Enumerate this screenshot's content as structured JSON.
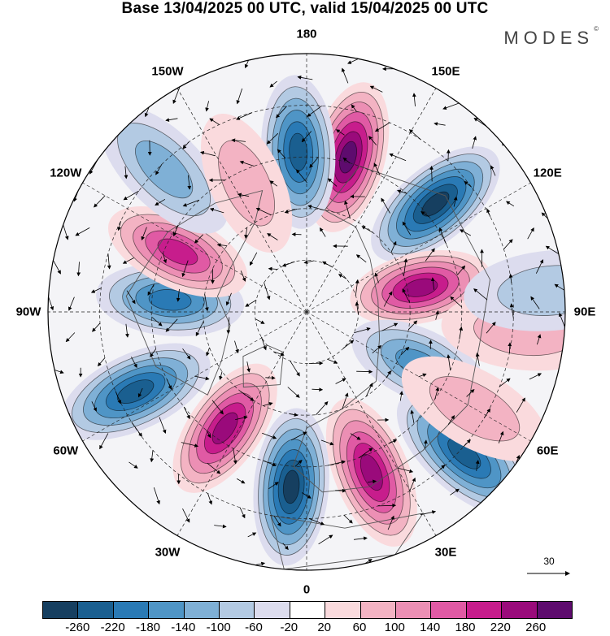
{
  "title": "Base 13/04/2025 00 UTC, valid 15/04/2025 00 UTC",
  "brand": "MODES",
  "brand_mark": "©",
  "longitude_labels": [
    {
      "text": "180",
      "lon": 180
    },
    {
      "text": "150E",
      "lon": 150
    },
    {
      "text": "120E",
      "lon": 120
    },
    {
      "text": "90E",
      "lon": 90
    },
    {
      "text": "60E",
      "lon": 60
    },
    {
      "text": "30E",
      "lon": 30
    },
    {
      "text": "0",
      "lon": 0
    },
    {
      "text": "30W",
      "lon": -30
    },
    {
      "text": "60W",
      "lon": -60
    },
    {
      "text": "90W",
      "lon": -90
    },
    {
      "text": "120W",
      "lon": -120
    },
    {
      "text": "150W",
      "lon": -150
    }
  ],
  "reference_vector": {
    "label": "30"
  },
  "colorbar": {
    "colors": [
      "#163f60",
      "#1a5f90",
      "#2a7ab5",
      "#4f95c6",
      "#7fb0d6",
      "#b3cae3",
      "#dcdcee",
      "#ffffff",
      "#fadadd",
      "#f3b3c3",
      "#ec8fb4",
      "#e05aa4",
      "#c71d8c",
      "#9a0a7b",
      "#5e0b6e"
    ],
    "ticks": [
      "-260",
      "-220",
      "-180",
      "-140",
      "-100",
      "-60",
      "-20",
      "20",
      "60",
      "100",
      "140",
      "180",
      "220",
      "260"
    ]
  },
  "anomalies": [
    {
      "name": "anomaly-positive-150e",
      "lon": 165,
      "r": 0.62,
      "value": 260
    },
    {
      "name": "anomaly-negative-180",
      "lon": 183,
      "r": 0.62,
      "value": -240
    },
    {
      "name": "anomaly-negative-130e",
      "lon": 130,
      "r": 0.65,
      "value": -260
    },
    {
      "name": "anomaly-positive-100e",
      "lon": 102,
      "r": 0.45,
      "value": 220
    },
    {
      "name": "anomaly-negative-70e",
      "lon": 65,
      "r": 0.48,
      "value": -160
    },
    {
      "name": "anomaly-negative-50e",
      "lon": 48,
      "r": 0.82,
      "value": -220
    },
    {
      "name": "anomaly-positive-20e",
      "lon": 22,
      "r": 0.67,
      "value": 240
    },
    {
      "name": "anomaly-negative-5w",
      "lon": -5,
      "r": 0.68,
      "value": -260
    },
    {
      "name": "anomaly-positive-35w",
      "lon": -35,
      "r": 0.55,
      "value": 240
    },
    {
      "name": "anomaly-negative-65w",
      "lon": -65,
      "r": 0.73,
      "value": -220
    },
    {
      "name": "anomaly-negative-90w",
      "lon": -95,
      "r": 0.53,
      "value": -200
    },
    {
      "name": "anomaly-positive-110w",
      "lon": -115,
      "r": 0.55,
      "value": 200
    },
    {
      "name": "anomaly-negative-130w",
      "lon": -135,
      "r": 0.78,
      "value": -100
    },
    {
      "name": "anomaly-positive-150w",
      "lon": -155,
      "r": 0.55,
      "value": 60
    },
    {
      "name": "anomaly-positive-90e",
      "lon": 85,
      "r": 0.85,
      "value": 60
    },
    {
      "name": "anomaly-positive-60e",
      "lon": 60,
      "r": 0.75,
      "value": 60
    },
    {
      "name": "anomaly-negative-90e-edge",
      "lon": 95,
      "r": 0.95,
      "value": -60
    }
  ]
}
